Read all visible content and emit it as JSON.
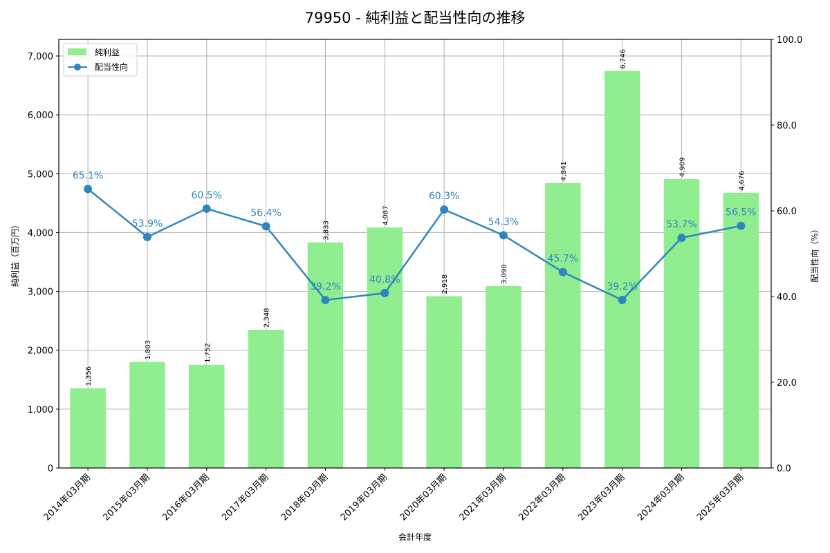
{
  "chart_data": {
    "type": "bar+line",
    "title": "79950 - 純利益と配当性向の推移",
    "xlabel": "会計年度",
    "ylabel_left": "純利益（百万円）",
    "ylabel_right": "配当性向（%）",
    "categories": [
      "2014年03月期",
      "2015年03月期",
      "2016年03月期",
      "2017年03月期",
      "2018年03月期",
      "2019年03月期",
      "2020年03月期",
      "2021年03月期",
      "2022年03月期",
      "2023年03月期",
      "2024年03月期",
      "2025年03月期"
    ],
    "series": [
      {
        "name": "純利益",
        "type": "bar",
        "axis": "left",
        "color": "#90ee90",
        "values": [
          1356,
          1803,
          1752,
          2348,
          3833,
          4087,
          2918,
          3090,
          4841,
          6746,
          4909,
          4676
        ],
        "labels": [
          "1,356",
          "1,803",
          "1,752",
          "2,348",
          "3,833",
          "4,087",
          "2,918",
          "3,090",
          "4,841",
          "6,746",
          "4,909",
          "4,676"
        ]
      },
      {
        "name": "配当性向",
        "type": "line",
        "axis": "right",
        "color": "#2e86c1",
        "values": [
          65.1,
          53.9,
          60.5,
          56.4,
          39.2,
          40.8,
          60.3,
          54.3,
          45.7,
          39.2,
          53.7,
          56.5
        ],
        "labels": [
          "65.1%",
          "53.9%",
          "60.5%",
          "56.4%",
          "39.2%",
          "40.8%",
          "60.3%",
          "54.3%",
          "45.7%",
          "39.2%",
          "53.7%",
          "56.5%"
        ]
      }
    ],
    "ylim_left": [
      0,
      7282
    ],
    "yticks_left": [
      0,
      1000,
      2000,
      3000,
      4000,
      5000,
      6000,
      7000
    ],
    "yticklabels_left": [
      "0",
      "1,000",
      "2,000",
      "3,000",
      "4,000",
      "5,000",
      "6,000",
      "7,000"
    ],
    "ylim_right": [
      0,
      100
    ],
    "yticks_right": [
      0,
      20,
      40,
      60,
      80,
      100
    ],
    "yticklabels_right": [
      "0.0",
      "20.0",
      "40.0",
      "60.0",
      "80.0",
      "100.0"
    ],
    "grid": true,
    "legend_position": "upper left",
    "legend": [
      "純利益",
      "配当性向"
    ]
  }
}
